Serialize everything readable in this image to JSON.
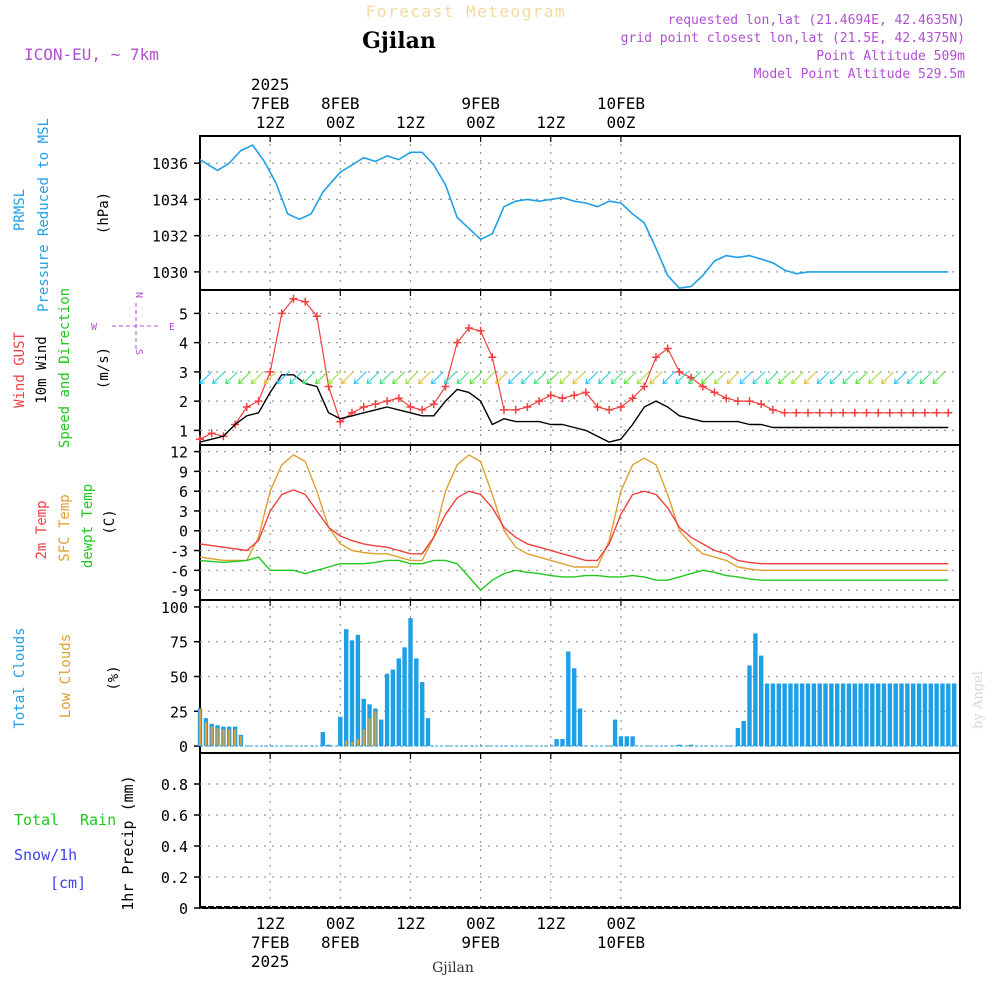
{
  "header": {
    "title_faded": "Forecast Meteogram",
    "location": "Gjilan",
    "model": "ICON-EU, ~ 7km",
    "requested": "requested lon,lat (21.4694E, 42.4635N)",
    "grid_point": "grid point closest lon,lat (21.5E, 42.4375N)",
    "point_alt": "Point Altitude 509m",
    "model_alt": "Model Point Altitude 529.5m"
  },
  "time_axis": {
    "top_labels": [
      {
        "lines": [
          "2025",
          "7FEB",
          "12Z"
        ]
      },
      {
        "lines": [
          "8FEB",
          "00Z"
        ]
      },
      {
        "lines": [
          "12Z"
        ]
      },
      {
        "lines": [
          "9FEB",
          "00Z"
        ]
      },
      {
        "lines": [
          "12Z"
        ]
      },
      {
        "lines": [
          "10FEB",
          "00Z"
        ]
      }
    ],
    "bottom_labels": [
      {
        "lines": [
          "12Z",
          "7FEB",
          "2025"
        ]
      },
      {
        "lines": [
          "00Z",
          "8FEB"
        ]
      },
      {
        "lines": [
          "12Z"
        ]
      },
      {
        "lines": [
          "00Z",
          "9FEB"
        ]
      },
      {
        "lines": [
          "12Z"
        ]
      },
      {
        "lines": [
          "00Z",
          "10FEB"
        ]
      }
    ],
    "bottom_location": "Gjilan",
    "watermark": "by Angel"
  },
  "colors": {
    "pressure": "#1ea0e6",
    "gust": "#f04040",
    "wind": "#000000",
    "temp2m": "#f04040",
    "sfc": "#e0a030",
    "dewpt": "#20c820",
    "total_cloud": "#1ea0e6",
    "low_cloud": "#e0a030",
    "rain": "#20c820",
    "snow": "#4040f0",
    "purple": "#b050d0"
  },
  "panels": {
    "pressure": {
      "labels": [
        "PRMSL",
        "Pressure Reduced to MSL"
      ],
      "unit": "(hPa)",
      "ticks": [
        "1036",
        "1034",
        "1032",
        "1030"
      ]
    },
    "wind": {
      "labels": [
        "Wind GUST",
        "10m Wind",
        "Speed and Direction"
      ],
      "unit": "(m/s)",
      "ticks": [
        "5",
        "4",
        "3",
        "2",
        "1"
      ],
      "compass": {
        "n": "N",
        "s": "S",
        "w": "W",
        "e": "E"
      }
    },
    "temp": {
      "labels": [
        "2m Temp",
        "SFC Temp",
        "dewpt Temp"
      ],
      "unit": "(C)",
      "ticks": [
        "12",
        "9",
        "6",
        "3",
        "0",
        "-3",
        "-6",
        "-9"
      ]
    },
    "clouds": {
      "labels": [
        "Total Clouds",
        "Low Clouds"
      ],
      "unit": "(%)",
      "ticks": [
        "100",
        "75",
        "50",
        "25",
        "0"
      ]
    },
    "precip": {
      "labels": [
        "Total",
        "Rain",
        "Snow/1h",
        "[cm]"
      ],
      "unit": "1hr Precip (mm)",
      "ticks": [
        "0.8",
        "0.6",
        "0.4",
        "0.2",
        "0"
      ]
    }
  },
  "chart_data": [
    {
      "type": "line",
      "title": "PRMSL Pressure Reduced to MSL",
      "ylabel": "(hPa)",
      "x_hours_from_2025-02-07T00Z": [
        0,
        3,
        5,
        7,
        9,
        11,
        13,
        15,
        17,
        19,
        21,
        24,
        26,
        28,
        30,
        32,
        34,
        36,
        38,
        40,
        42,
        44,
        46,
        48,
        50,
        52,
        54,
        56,
        58,
        60,
        62,
        64,
        66,
        68,
        70,
        72,
        74,
        76,
        78,
        80,
        82,
        84,
        86,
        88,
        90,
        92,
        94,
        96,
        98,
        100,
        102,
        104,
        106,
        108,
        110,
        112,
        114,
        116,
        118,
        120,
        122,
        124,
        126,
        128,
        130
      ],
      "series": [
        {
          "name": "PRMSL",
          "values": [
            1036.2,
            1035.6,
            1036.0,
            1036.7,
            1037.0,
            1036.1,
            1034.9,
            1033.2,
            1032.9,
            1033.2,
            1034.4,
            1035.5,
            1035.9,
            1036.3,
            1036.1,
            1036.4,
            1036.2,
            1036.6,
            1036.6,
            1035.9,
            1034.8,
            1033.0,
            1032.4,
            1031.8,
            1032.1,
            1033.6,
            1033.9,
            1034.0,
            1033.9,
            1034.0,
            1034.1,
            1033.9,
            1033.8,
            1033.6,
            1033.9,
            1033.8,
            1033.2,
            1032.7,
            1031.3,
            1029.8,
            1029.1,
            1029.2,
            1029.8,
            1030.6,
            1030.9,
            1030.8,
            1030.9,
            1030.7,
            1030.5,
            1030.1,
            1029.9,
            1030.0,
            1030.0,
            1030.0,
            1030.0,
            1030.0,
            1030.0,
            1030.0,
            1030.0,
            1030.0,
            1030.0,
            1030.0,
            1030.0,
            1030.0,
            1030.0
          ]
        }
      ],
      "ylim": [
        1029,
        1037.5
      ]
    },
    {
      "type": "line",
      "title": "Wind GUST / 10m Wind Speed and Direction",
      "ylabel": "(m/s)",
      "x_hours_from_2025-02-07T00Z": [
        0,
        2,
        4,
        6,
        8,
        10,
        12,
        14,
        16,
        18,
        20,
        22,
        24,
        26,
        28,
        30,
        32,
        34,
        36,
        38,
        40,
        42,
        44,
        46,
        48,
        50,
        52,
        54,
        56,
        58,
        60,
        62,
        64,
        66,
        68,
        70,
        72,
        74,
        76,
        78,
        80,
        82,
        84,
        86,
        88,
        90,
        92,
        94,
        96,
        98,
        100,
        102,
        104,
        106,
        108,
        110,
        112,
        114,
        116,
        118,
        120,
        122,
        124,
        126,
        128
      ],
      "series": [
        {
          "name": "Wind GUST",
          "values": [
            0.7,
            0.9,
            0.8,
            1.2,
            1.8,
            2.0,
            3.0,
            5.0,
            5.5,
            5.4,
            4.9,
            2.5,
            1.3,
            1.6,
            1.8,
            1.9,
            2.0,
            2.1,
            1.8,
            1.7,
            1.9,
            2.5,
            4.0,
            4.5,
            4.4,
            3.5,
            1.7,
            1.7,
            1.8,
            2.0,
            2.2,
            2.1,
            2.2,
            2.3,
            1.8,
            1.7,
            1.8,
            2.1,
            2.5,
            3.5,
            3.8,
            3.0,
            2.8,
            2.5,
            2.3,
            2.1,
            2.0,
            2.0,
            1.9,
            1.7,
            1.6,
            1.6,
            1.6,
            1.6,
            1.6,
            1.6,
            1.6,
            1.6,
            1.6,
            1.6,
            1.6,
            1.6,
            1.6,
            1.6,
            1.6
          ]
        },
        {
          "name": "10m Wind",
          "values": [
            0.6,
            0.7,
            0.8,
            1.2,
            1.5,
            1.6,
            2.3,
            2.9,
            2.9,
            2.6,
            2.5,
            1.6,
            1.4,
            1.5,
            1.6,
            1.7,
            1.8,
            1.7,
            1.6,
            1.5,
            1.5,
            2.0,
            2.4,
            2.3,
            2.0,
            1.2,
            1.4,
            1.3,
            1.3,
            1.3,
            1.2,
            1.2,
            1.1,
            1.0,
            0.8,
            0.6,
            0.7,
            1.2,
            1.8,
            2.0,
            1.8,
            1.5,
            1.4,
            1.3,
            1.3,
            1.3,
            1.3,
            1.2,
            1.2,
            1.1,
            1.1,
            1.1,
            1.1,
            1.1,
            1.1,
            1.1,
            1.1,
            1.1,
            1.1,
            1.1,
            1.1,
            1.1,
            1.1,
            1.1,
            1.1
          ]
        }
      ],
      "ylim": [
        0.5,
        5.8
      ]
    },
    {
      "type": "line",
      "title": "2m Temp / SFC Temp / dewpt Temp",
      "ylabel": "(C)",
      "x_hours_from_2025-02-07T00Z": [
        0,
        4,
        8,
        10,
        12,
        14,
        16,
        18,
        20,
        22,
        24,
        26,
        28,
        30,
        32,
        34,
        36,
        38,
        40,
        42,
        44,
        46,
        48,
        50,
        52,
        54,
        56,
        58,
        60,
        62,
        64,
        66,
        68,
        70,
        72,
        74,
        76,
        78,
        80,
        82,
        84,
        86,
        88,
        90,
        92,
        94,
        96,
        98,
        100,
        102,
        104,
        106,
        108,
        110,
        112,
        114,
        116,
        118,
        120,
        122,
        124,
        126,
        128,
        130,
        132
      ],
      "series": [
        {
          "name": "2m Temp",
          "values": [
            -2.0,
            -2.5,
            -3.0,
            -1.5,
            3.0,
            5.5,
            6.2,
            5.5,
            3.0,
            0.5,
            -0.8,
            -1.5,
            -2.0,
            -2.3,
            -2.5,
            -3.0,
            -3.5,
            -3.5,
            -1.0,
            2.5,
            5.0,
            6.0,
            5.5,
            3.5,
            0.5,
            -1.0,
            -2.0,
            -2.5,
            -3.0,
            -3.5,
            -4.0,
            -4.5,
            -4.5,
            -2.0,
            2.5,
            5.5,
            6.0,
            5.5,
            3.5,
            0.5,
            -1.0,
            -2.0,
            -3.0,
            -3.5,
            -4.5,
            -4.8,
            -5.0,
            -5.0,
            -5.0,
            -5.0,
            -5.0,
            -5.0,
            -5.0,
            -5.0,
            -5.0,
            -5.0,
            -5.0,
            -5.0,
            -5.0,
            -5.0,
            -5.0,
            -5.0,
            -5.0,
            -5.0,
            -5.0
          ]
        },
        {
          "name": "SFC Temp",
          "values": [
            -4.0,
            -4.5,
            -4.5,
            -1.0,
            6.0,
            10.0,
            11.5,
            10.5,
            6.0,
            0.5,
            -2.0,
            -3.0,
            -3.3,
            -3.5,
            -3.5,
            -4.0,
            -4.5,
            -4.5,
            -1.0,
            6.0,
            10.0,
            11.5,
            10.5,
            5.5,
            0.0,
            -2.5,
            -3.5,
            -4.0,
            -4.5,
            -5.0,
            -5.5,
            -5.5,
            -5.5,
            -1.5,
            6.0,
            10.0,
            11.0,
            10.0,
            5.5,
            0.0,
            -2.0,
            -3.5,
            -4.0,
            -4.5,
            -5.5,
            -5.8,
            -6.0,
            -6.0,
            -6.0,
            -6.0,
            -6.0,
            -6.0,
            -6.0,
            -6.0,
            -6.0,
            -6.0,
            -6.0,
            -6.0,
            -6.0,
            -6.0,
            -6.0,
            -6.0,
            -6.0,
            -6.0,
            -6.0
          ]
        },
        {
          "name": "dewpt Temp",
          "values": [
            -4.5,
            -4.8,
            -4.5,
            -4.0,
            -6.0,
            -6.0,
            -6.0,
            -6.5,
            -6.0,
            -5.5,
            -5.0,
            -5.0,
            -5.0,
            -4.8,
            -4.5,
            -4.5,
            -5.0,
            -5.0,
            -4.5,
            -4.5,
            -5.0,
            -7.0,
            -9.0,
            -7.5,
            -6.5,
            -6.0,
            -6.3,
            -6.5,
            -6.8,
            -7.0,
            -7.0,
            -6.8,
            -6.8,
            -7.0,
            -7.0,
            -6.8,
            -7.0,
            -7.5,
            -7.5,
            -7.0,
            -6.5,
            -6.0,
            -6.3,
            -6.8,
            -7.0,
            -7.3,
            -7.5,
            -7.5,
            -7.5,
            -7.5,
            -7.5,
            -7.5,
            -7.5,
            -7.5,
            -7.5,
            -7.5,
            -7.5,
            -7.5,
            -7.5,
            -7.5,
            -7.5,
            -7.5,
            -7.5,
            -7.5,
            -7.5
          ]
        }
      ],
      "ylim": [
        -10.5,
        13
      ]
    },
    {
      "type": "bar",
      "title": "Total Clouds / Low Clouds",
      "ylabel": "(%)",
      "x_hours_from_2025-02-07T00Z": [
        0,
        1,
        2,
        3,
        4,
        5,
        6,
        7,
        8,
        19,
        20,
        21,
        22,
        23,
        24,
        25,
        26,
        27,
        28,
        29,
        30,
        31,
        32,
        33,
        34,
        35,
        36,
        37,
        38,
        39,
        40,
        41,
        42,
        43,
        44,
        45,
        46,
        47,
        48,
        55,
        56,
        57,
        58,
        59,
        60,
        61,
        62,
        63,
        64,
        65,
        71,
        72,
        73,
        74,
        75,
        76,
        77,
        78,
        79,
        80,
        82,
        83,
        84,
        85,
        86,
        87,
        88,
        89,
        90,
        91,
        92,
        93,
        94,
        95,
        96,
        97,
        98,
        99,
        100,
        101,
        102,
        103,
        104,
        105,
        106,
        107,
        108,
        109,
        110,
        111,
        112,
        113,
        114,
        115,
        116,
        117,
        118,
        119,
        120,
        121,
        122,
        123,
        124,
        125,
        126,
        127,
        128,
        129,
        130
      ],
      "series": [
        {
          "name": "Total Clouds",
          "values": [
            27,
            20,
            16,
            15,
            14,
            14,
            14,
            8,
            0,
            0,
            0,
            10,
            1,
            0,
            21,
            84,
            76,
            80,
            34,
            30,
            27,
            19,
            52,
            55,
            63,
            71,
            92,
            63,
            46,
            20,
            0,
            0,
            0,
            0,
            0,
            0,
            0,
            0,
            0,
            0,
            0,
            0,
            0,
            0,
            0,
            5,
            5,
            68,
            56,
            27,
            19,
            7,
            7,
            7,
            0,
            0,
            0,
            0,
            0,
            0,
            1,
            0,
            1,
            0,
            0,
            0,
            0,
            0,
            0,
            0,
            13,
            18,
            58,
            81,
            65,
            45,
            45,
            45,
            45,
            45,
            45,
            45,
            45,
            45,
            45,
            45,
            45,
            45,
            45,
            45,
            45,
            45,
            45,
            45,
            45,
            45,
            45,
            45,
            45,
            45,
            45,
            45,
            45,
            45,
            45,
            45,
            45,
            45,
            45
          ]
        },
        {
          "name": "Low Clouds",
          "values": [
            27,
            17,
            14,
            13,
            12,
            12,
            12,
            7,
            0,
            0,
            0,
            0,
            0,
            0,
            0,
            4,
            3,
            5,
            12,
            20,
            25,
            0,
            0,
            0,
            0,
            0,
            0,
            0,
            0,
            0,
            0,
            0,
            0,
            0,
            0,
            0,
            0,
            0,
            0,
            0,
            0,
            0,
            0,
            0,
            0,
            0,
            0,
            0,
            0,
            0,
            0,
            0,
            0,
            0,
            0,
            0,
            0,
            0,
            0,
            0,
            0,
            0,
            0,
            0,
            0,
            0,
            0,
            0,
            0,
            0,
            0,
            0,
            0,
            0,
            0,
            0,
            0,
            0,
            0,
            0,
            0,
            0,
            0,
            0,
            0,
            0,
            0,
            0,
            0,
            0,
            0,
            0,
            0,
            0,
            0,
            0,
            0,
            0,
            0,
            0,
            0,
            0,
            0,
            0,
            0,
            0,
            0,
            0,
            0
          ]
        }
      ],
      "ylim": [
        -5,
        105
      ]
    },
    {
      "type": "bar",
      "title": "1hr Precip",
      "ylabel": "1hr Precip (mm)",
      "series": [
        {
          "name": "Total Rain",
          "values": [
            0
          ]
        }
      ],
      "ylim": [
        0,
        1.0
      ]
    }
  ]
}
